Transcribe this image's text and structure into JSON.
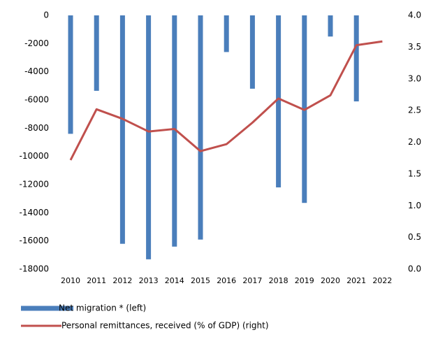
{
  "chart_data": {
    "type": "bar-line",
    "categories": [
      "2010",
      "2011",
      "2012",
      "2013",
      "2014",
      "2015",
      "2016",
      "2017",
      "2018",
      "2019",
      "2020",
      "2021",
      "2022"
    ],
    "series": [
      {
        "name": "Net migration * (left)",
        "type": "bar",
        "color": "#4a7ebb",
        "axis": "y",
        "values": [
          -8400,
          -5350,
          -16200,
          -17300,
          -16400,
          -15900,
          -2600,
          -5200,
          -12200,
          -13300,
          -1500,
          -6100,
          null
        ]
      },
      {
        "name": "Personal remittances, received (% of GDP) (right)",
        "type": "line",
        "color": "#c0504d",
        "axis": "y2",
        "values": [
          1.72,
          2.52,
          2.37,
          2.17,
          2.21,
          1.86,
          1.97,
          2.31,
          2.69,
          2.51,
          2.74,
          3.53,
          3.59
        ]
      }
    ],
    "ylim": [
      -18000,
      0
    ],
    "yticks": [
      0,
      -2000,
      -4000,
      -6000,
      -8000,
      -10000,
      -12000,
      -14000,
      -16000,
      -18000
    ],
    "y2lim": [
      0,
      4
    ],
    "y2ticks": [
      {
        "value": 4,
        "label": "4.0"
      },
      {
        "value": 3.5,
        "label": "3.5"
      },
      {
        "value": 3,
        "label": "3.0"
      },
      {
        "value": 2.5,
        "label": "2.5"
      },
      {
        "value": 2,
        "label": "2.0"
      },
      {
        "value": 1.5,
        "label": "1.5"
      },
      {
        "value": 1,
        "label": "1.0"
      },
      {
        "value": 0.5,
        "label": "0.5"
      },
      {
        "value": 0,
        "label": "0.0"
      }
    ],
    "grid": false,
    "legend": "bottom"
  }
}
